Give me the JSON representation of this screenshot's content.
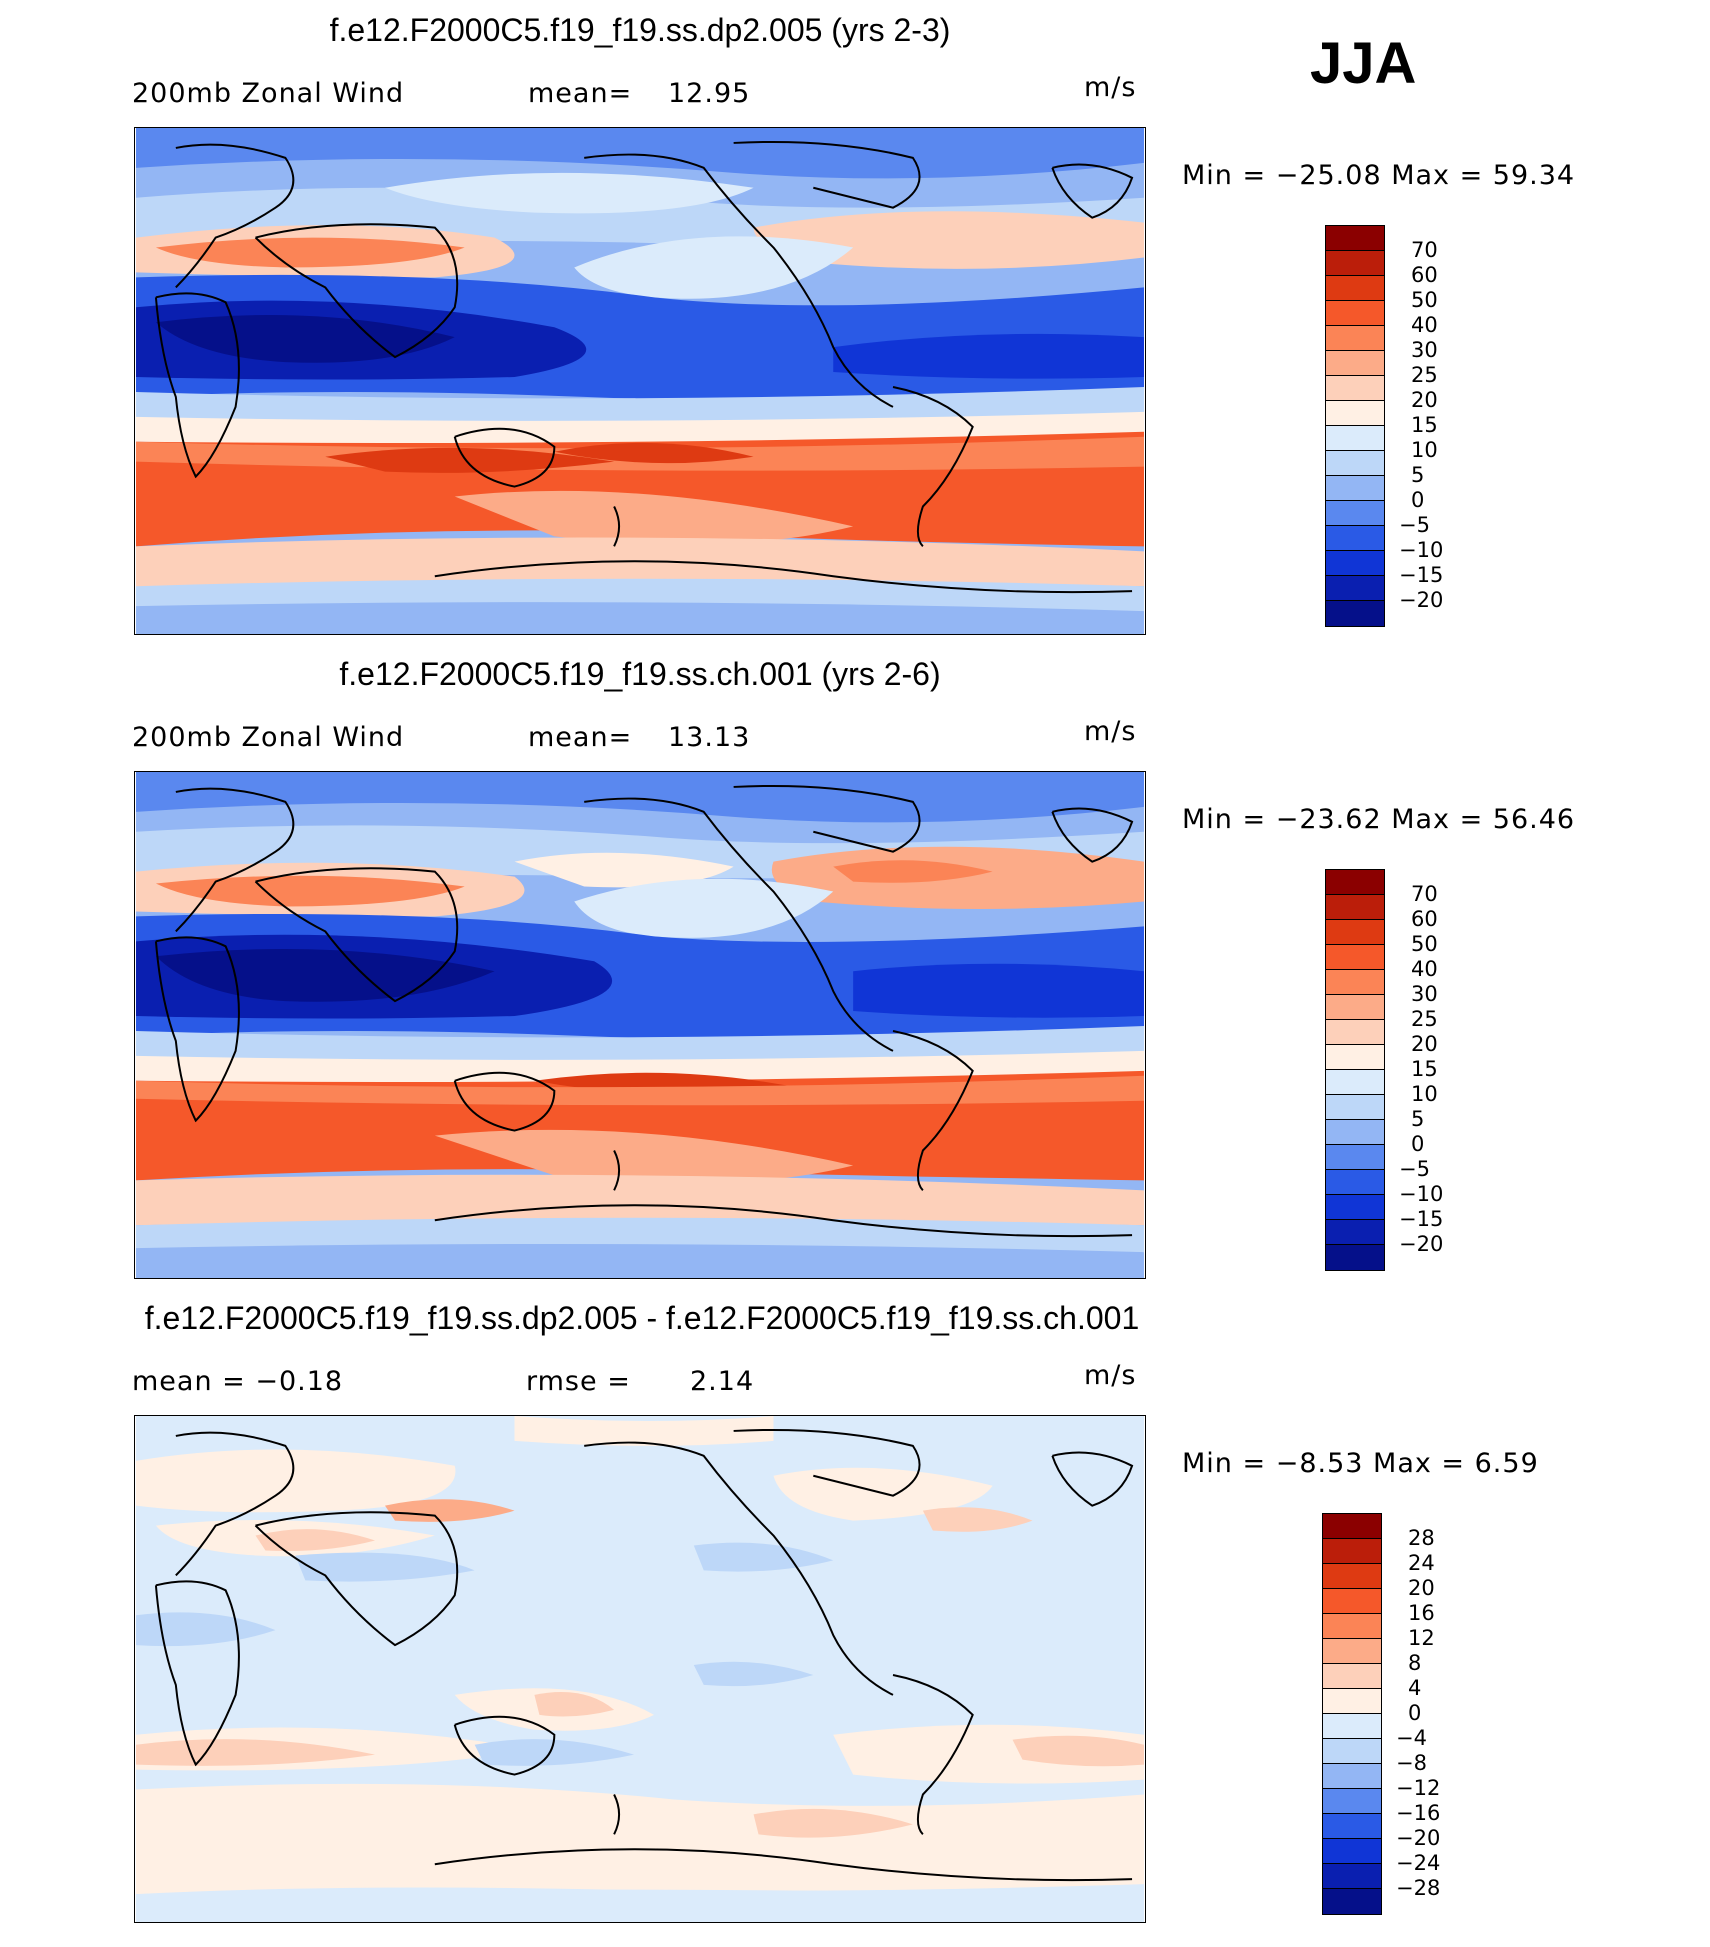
{
  "season": "JJA",
  "panels": [
    {
      "id": "top",
      "title": "f.e12.F2000C5.f19_f19.ss.dp2.005 (yrs 2-3)",
      "left_label": "200mb  Zonal Wind",
      "stat_label": "mean=",
      "stat_value": "12.95",
      "units": "m/s",
      "minmax": "Min  =  −25.08  Max  =    59.34",
      "colorbar": {
        "labels": [
          "70",
          "60",
          "50",
          "40",
          "30",
          "25",
          "20",
          "15",
          "10",
          "5",
          "0",
          "−5",
          "−10",
          "−15",
          "−20"
        ],
        "colors": [
          "#8b0000",
          "#bb1e0a",
          "#de3a12",
          "#f5582a",
          "#fb8456",
          "#fcab88",
          "#fdd0ba",
          "#fff0e4",
          "#dbebfb",
          "#bdd7f8",
          "#93b6f4",
          "#5a88ef",
          "#2a5ae6",
          "#1035d6",
          "#0a1fb0",
          "#05108a"
        ]
      }
    },
    {
      "id": "middle",
      "title": "f.e12.F2000C5.f19_f19.ss.ch.001 (yrs 2-6)",
      "left_label": "200mb  Zonal Wind",
      "stat_label": "mean=",
      "stat_value": "13.13",
      "units": "m/s",
      "minmax": "Min  =  −23.62  Max  =    56.46",
      "colorbar": {
        "labels": [
          "70",
          "60",
          "50",
          "40",
          "30",
          "25",
          "20",
          "15",
          "10",
          "5",
          "0",
          "−5",
          "−10",
          "−15",
          "−20"
        ],
        "colors": [
          "#8b0000",
          "#bb1e0a",
          "#de3a12",
          "#f5582a",
          "#fb8456",
          "#fcab88",
          "#fdd0ba",
          "#fff0e4",
          "#dbebfb",
          "#bdd7f8",
          "#93b6f4",
          "#5a88ef",
          "#2a5ae6",
          "#1035d6",
          "#0a1fb0",
          "#05108a"
        ]
      }
    },
    {
      "id": "diff",
      "title": "f.e12.F2000C5.f19_f19.ss.dp2.005 - f.e12.F2000C5.f19_f19.ss.ch.001",
      "left_label": "mean  =    −0.18",
      "stat_label": "rmse  =",
      "stat_value": "2.14",
      "units": "m/s",
      "minmax": "Min  =    −8.53  Max  =      6.59",
      "colorbar": {
        "labels": [
          "28",
          "24",
          "20",
          "16",
          "12",
          "8",
          "4",
          "0",
          "−4",
          "−8",
          "−12",
          "−16",
          "−20",
          "−24",
          "−28"
        ],
        "colors": [
          "#8b0000",
          "#bb1e0a",
          "#de3a12",
          "#f5582a",
          "#fb8456",
          "#fcab88",
          "#fdd0ba",
          "#fff0e4",
          "#dbebfb",
          "#bdd7f8",
          "#93b6f4",
          "#5a88ef",
          "#2a5ae6",
          "#1035d6",
          "#0a1fb0",
          "#05108a"
        ]
      }
    }
  ]
}
